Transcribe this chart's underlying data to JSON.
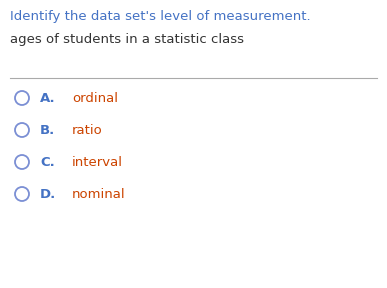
{
  "title": "Identify the data set's level of measurement.",
  "subtitle": "ages of students in a statistic class",
  "title_color": "#4472C4",
  "subtitle_color": "#333333",
  "option_label_color": "#4472C4",
  "option_text_color": "#CC4400",
  "options": [
    {
      "letter": "A.",
      "text": "ordinal"
    },
    {
      "letter": "B.",
      "text": "ratio"
    },
    {
      "letter": "C.",
      "text": "interval"
    },
    {
      "letter": "D.",
      "text": "nominal"
    }
  ],
  "background_color": "#FFFFFF",
  "line_color": "#AAAAAA",
  "circle_color": "#7B8FD4",
  "title_fontsize": 9.5,
  "subtitle_fontsize": 9.5,
  "option_fontsize": 9.5
}
